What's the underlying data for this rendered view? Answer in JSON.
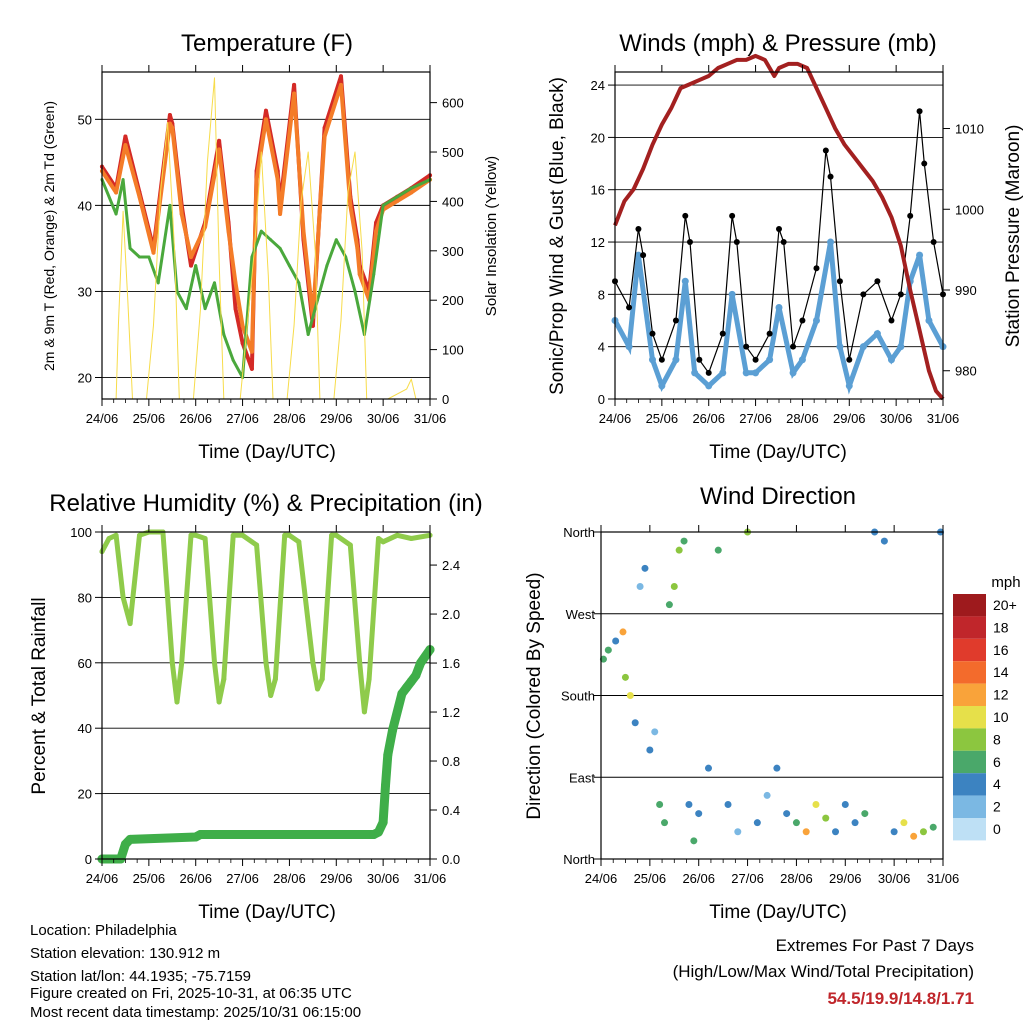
{
  "info": {
    "location": "Location: Philadelphia",
    "elevation": "Station elevation: 130.912 m",
    "latlon": "Station lat/lon: 44.1935; -75.7159",
    "created": "Figure created on Fri, 2025-10-31, at 06:35 UTC",
    "recent": "Most recent data timestamp: 2025/10/31 06:15:00"
  },
  "extremes": {
    "title": "Extremes For Past 7 Days",
    "subtitle": "(High/Low/Max Wind/Total Precipitation)",
    "values": "54.5/19.9/14.8/1.71"
  },
  "colors": {
    "temp_red": "#d42a26",
    "temp_orange": "#f47c28",
    "dewpoint_green": "#4aa83c",
    "solar_yellow": "#f7dc4a",
    "wind_blue": "#5b9fd4",
    "gust_black": "#000000",
    "pressure_maroon": "#a32020",
    "rh_green": "#8fcb4b",
    "precip_green": "#3fae49"
  },
  "chart_data": [
    {
      "type": "line",
      "title": "Temperature (F)",
      "xlabel": "Time (Day/UTC)",
      "ylabel": "2m & 9m T (Red, Orange) & 2m Td (Green)",
      "ylabel_right": "Solar Insolation (Yellow)",
      "x_ticks": [
        "24/06",
        "25/06",
        "26/06",
        "27/06",
        "28/06",
        "29/06",
        "30/06",
        "31/06"
      ],
      "xlim": [
        0,
        7
      ],
      "ylim": [
        17.5,
        55.5
      ],
      "y_ticks": [
        20,
        30,
        40,
        50
      ],
      "ylim_right": [
        0,
        662
      ],
      "y_ticks_right": [
        0,
        100,
        200,
        300,
        400,
        500,
        600
      ],
      "series": [
        {
          "name": "2m T",
          "color": "#d42a26",
          "x": [
            0,
            0.3,
            0.5,
            0.8,
            1.1,
            1.45,
            1.5,
            1.7,
            1.9,
            2.2,
            2.5,
            2.7,
            2.85,
            3.0,
            3.2,
            3.3,
            3.5,
            3.75,
            3.8,
            4.1,
            4.3,
            4.5,
            4.75,
            5.1,
            5.3,
            5.45,
            5.5,
            5.7,
            5.85,
            6.0,
            6.3,
            6.6,
            7.0
          ],
          "y": [
            44.5,
            42,
            48,
            41.5,
            35,
            50.5,
            49.5,
            40,
            33,
            38,
            47.5,
            38,
            28,
            24,
            21,
            44,
            51,
            44,
            40,
            54,
            36,
            26,
            49,
            55,
            41,
            36,
            33,
            30,
            38,
            40,
            41,
            42,
            43.5
          ]
        },
        {
          "name": "9m T",
          "color": "#f47c28",
          "x": [
            0,
            0.3,
            0.5,
            0.8,
            1.1,
            1.45,
            1.5,
            1.7,
            1.9,
            2.2,
            2.5,
            2.7,
            2.85,
            3.0,
            3.2,
            3.3,
            3.5,
            3.75,
            3.8,
            4.1,
            4.3,
            4.5,
            4.75,
            5.1,
            5.3,
            5.45,
            5.5,
            5.7,
            5.85,
            6.0,
            6.3,
            6.6,
            7.0
          ],
          "y": [
            44,
            41.5,
            47,
            41,
            34.5,
            49.5,
            49,
            39,
            34,
            37.5,
            46.5,
            37,
            31,
            26,
            23,
            43,
            50,
            43,
            39,
            53,
            37,
            27,
            48,
            54,
            40,
            35,
            32,
            29,
            37,
            39.5,
            40.5,
            41.5,
            43
          ]
        },
        {
          "name": "2m Td",
          "color": "#4aa83c",
          "x": [
            0,
            0.3,
            0.45,
            0.6,
            0.8,
            1.0,
            1.2,
            1.45,
            1.6,
            1.8,
            2.0,
            2.2,
            2.4,
            2.6,
            2.8,
            3.0,
            3.2,
            3.4,
            3.6,
            3.8,
            4.0,
            4.2,
            4.4,
            4.6,
            4.8,
            5.0,
            5.2,
            5.4,
            5.6,
            5.8,
            6.0,
            6.3,
            6.6,
            7.0
          ],
          "y": [
            43,
            39,
            43,
            35,
            34,
            34,
            31,
            40,
            30,
            28,
            33,
            28,
            31,
            25,
            22,
            20,
            34,
            37,
            36,
            35,
            33,
            31,
            25,
            29,
            33,
            36,
            34,
            30,
            25,
            32,
            40,
            41,
            42,
            43
          ]
        },
        {
          "name": "Solar Insolation",
          "color": "#f7dc4a",
          "axis": "right",
          "x": [
            0,
            0.3,
            0.35,
            0.45,
            0.55,
            0.65,
            0.95,
            1.1,
            1.25,
            1.4,
            1.55,
            1.65,
            1.95,
            2.1,
            2.25,
            2.4,
            2.5,
            2.6,
            2.95,
            3.1,
            3.25,
            3.4,
            3.55,
            3.65,
            3.95,
            4.1,
            4.25,
            4.4,
            4.55,
            4.65,
            4.95,
            5.1,
            5.25,
            5.4,
            5.55,
            5.65,
            5.95,
            6.1,
            6.5,
            6.6,
            6.7,
            7.0
          ],
          "y": [
            0,
            0,
            150,
            380,
            200,
            0,
            0,
            150,
            420,
            560,
            300,
            0,
            0,
            180,
            480,
            650,
            280,
            0,
            0,
            150,
            300,
            500,
            250,
            0,
            0,
            150,
            400,
            500,
            300,
            0,
            0,
            160,
            420,
            500,
            300,
            0,
            0,
            0,
            20,
            40,
            0,
            0
          ]
        }
      ]
    },
    {
      "type": "scatter",
      "title": "Winds (mph) & Pressure (mb)",
      "xlabel": "Time (Day/UTC)",
      "ylabel": "Sonic/Prop Wind & Gust (Blue, Black)",
      "ylabel_right": "Station Pressure (Maroon)",
      "x_ticks": [
        "24/06",
        "25/06",
        "26/06",
        "27/06",
        "28/06",
        "29/06",
        "30/06",
        "31/06"
      ],
      "xlim": [
        0,
        7
      ],
      "ylim": [
        0,
        25
      ],
      "y_ticks": [
        0,
        4,
        8,
        12,
        16,
        20,
        24
      ],
      "ylim_right": [
        976.5,
        1017
      ],
      "y_ticks_right": [
        980,
        990,
        1000,
        1010
      ],
      "series": [
        {
          "name": "Wind",
          "color": "#5b9fd4",
          "x": [
            0,
            0.3,
            0.5,
            0.8,
            1.0,
            1.3,
            1.5,
            1.7,
            2.0,
            2.3,
            2.5,
            2.8,
            3.0,
            3.3,
            3.5,
            3.8,
            4.0,
            4.3,
            4.6,
            4.8,
            5.0,
            5.3,
            5.6,
            5.9,
            6.1,
            6.3,
            6.5,
            6.7,
            7.0
          ],
          "y": [
            6,
            4,
            11,
            3,
            1,
            3,
            9,
            2,
            1,
            2,
            8,
            2,
            2,
            3,
            7,
            2,
            3,
            6,
            12,
            4,
            1,
            4,
            5,
            3,
            4,
            9,
            11,
            6,
            4
          ]
        },
        {
          "name": "Gust",
          "color": "#000000",
          "x": [
            0,
            0.3,
            0.5,
            0.6,
            0.8,
            1.0,
            1.3,
            1.5,
            1.6,
            1.8,
            2.0,
            2.3,
            2.5,
            2.6,
            2.8,
            3.0,
            3.3,
            3.5,
            3.6,
            3.8,
            4.0,
            4.3,
            4.5,
            4.6,
            4.8,
            5.0,
            5.3,
            5.6,
            5.9,
            6.1,
            6.3,
            6.5,
            6.6,
            6.8,
            7.0
          ],
          "y": [
            9,
            7,
            13,
            11,
            5,
            3,
            6,
            14,
            12,
            3,
            2,
            5,
            14,
            12,
            4,
            3,
            5,
            13,
            12,
            4,
            6,
            10,
            19,
            17,
            9,
            3,
            8,
            9,
            6,
            8,
            14,
            22,
            18,
            12,
            8
          ]
        },
        {
          "name": "Pressure",
          "color": "#a32020",
          "axis": "right",
          "x": [
            0,
            0.2,
            0.4,
            0.6,
            0.8,
            1.0,
            1.2,
            1.4,
            1.6,
            1.8,
            2.0,
            2.2,
            2.4,
            2.6,
            2.8,
            3.0,
            3.2,
            3.4,
            3.5,
            3.7,
            3.9,
            4.1,
            4.3,
            4.5,
            4.7,
            4.9,
            5.1,
            5.3,
            5.5,
            5.7,
            5.9,
            6.1,
            6.3,
            6.5,
            6.7,
            6.85,
            7.0
          ],
          "y": [
            998,
            1001,
            1002.5,
            1005,
            1008,
            1010.5,
            1012.5,
            1015,
            1015.5,
            1016,
            1016.5,
            1017.5,
            1018,
            1018.5,
            1018.5,
            1019,
            1018.5,
            1016.5,
            1017.5,
            1018,
            1018,
            1017.5,
            1015,
            1012.5,
            1010,
            1008,
            1006.5,
            1005,
            1003.5,
            1001.5,
            999,
            995.5,
            990,
            985,
            980,
            977.5,
            976.5
          ]
        }
      ]
    },
    {
      "type": "line",
      "title": "Relative Humidity (%) & Precipitation (in)",
      "xlabel": "Time (Day/UTC)",
      "ylabel": "Percent & Total Rainfall",
      "x_ticks": [
        "24/06",
        "25/06",
        "26/06",
        "27/06",
        "28/06",
        "29/06",
        "30/06",
        "31/06"
      ],
      "xlim": [
        0,
        7
      ],
      "ylim": [
        0,
        100
      ],
      "y_ticks": [
        0,
        20,
        40,
        60,
        80,
        100
      ],
      "ylim_right": [
        0,
        2.67
      ],
      "y_ticks_right": [
        0.0,
        0.4,
        0.8,
        1.2,
        1.6,
        2.0,
        2.4
      ],
      "series": [
        {
          "name": "Relative Humidity",
          "color": "#8fcb4b",
          "x": [
            0,
            0.15,
            0.3,
            0.45,
            0.6,
            0.8,
            1.0,
            1.3,
            1.5,
            1.6,
            1.7,
            1.9,
            2.0,
            2.2,
            2.4,
            2.5,
            2.6,
            2.8,
            3.0,
            3.3,
            3.5,
            3.6,
            3.7,
            3.9,
            4.0,
            4.2,
            4.5,
            4.6,
            4.7,
            4.9,
            5.0,
            5.3,
            5.5,
            5.6,
            5.7,
            5.9,
            6.0,
            6.3,
            6.6,
            7.0
          ],
          "y": [
            94,
            98,
            99,
            80,
            72,
            99,
            100,
            100,
            60,
            48,
            60,
            99,
            99,
            98,
            60,
            48,
            55,
            99,
            99,
            96,
            60,
            50,
            55,
            99,
            99,
            97,
            60,
            52,
            55,
            99,
            99,
            96,
            60,
            45,
            55,
            98,
            97,
            99,
            98,
            99
          ]
        },
        {
          "name": "Total Precipitation",
          "color": "#3fae49",
          "axis": "right",
          "x": [
            0,
            0.4,
            0.5,
            0.6,
            2.0,
            2.1,
            5.8,
            5.9,
            6.0,
            6.05,
            6.1,
            6.2,
            6.4,
            6.5,
            6.6,
            6.7,
            6.8,
            7.0
          ],
          "y": [
            0,
            0,
            0.12,
            0.16,
            0.18,
            0.2,
            0.2,
            0.22,
            0.3,
            0.6,
            0.85,
            1.05,
            1.35,
            1.4,
            1.45,
            1.5,
            1.6,
            1.71
          ]
        }
      ]
    },
    {
      "type": "scatter",
      "title": "Wind Direction",
      "xlabel": "Time (Day/UTC)",
      "ylabel": "Direction (Colored By Speed)",
      "x_ticks": [
        "24/06",
        "25/06",
        "26/06",
        "27/06",
        "28/06",
        "29/06",
        "30/06",
        "31/06"
      ],
      "xlim": [
        0,
        7
      ],
      "ylim": [
        0,
        360
      ],
      "y_tick_labels": [
        "North",
        "East",
        "South",
        "West",
        "North"
      ],
      "y_tick_values": [
        0,
        90,
        180,
        270,
        360
      ],
      "colorbar_title": "mph",
      "colorbar_labels": [
        "20+",
        "18",
        "16",
        "14",
        "12",
        "10",
        "8",
        "6",
        "4",
        "2",
        "0"
      ],
      "colorbar_colors": [
        "#9e1a1d",
        "#c0262b",
        "#e03b2c",
        "#f36b2c",
        "#f9a33a",
        "#e6e04a",
        "#8cc63f",
        "#4aa86a",
        "#3c83c1",
        "#7bb8e3",
        "#bee0f5"
      ],
      "series": [
        {
          "name": "Direction",
          "x": [
            0.05,
            0.15,
            0.3,
            0.45,
            0.5,
            0.6,
            0.7,
            0.8,
            0.9,
            1.0,
            1.1,
            1.2,
            1.3,
            1.4,
            1.5,
            1.6,
            1.7,
            1.8,
            1.9,
            2.0,
            2.2,
            2.4,
            2.6,
            2.8,
            3.0,
            3.2,
            3.4,
            3.6,
            3.8,
            4.0,
            4.2,
            4.4,
            4.6,
            4.8,
            5.0,
            5.2,
            5.4,
            5.6,
            5.8,
            6.0,
            6.2,
            6.4,
            6.6,
            6.8,
            6.95
          ],
          "y": [
            220,
            230,
            240,
            250,
            200,
            180,
            150,
            300,
            320,
            120,
            140,
            60,
            40,
            280,
            300,
            340,
            350,
            60,
            20,
            50,
            100,
            340,
            60,
            30,
            360,
            40,
            70,
            100,
            50,
            40,
            30,
            60,
            45,
            30,
            60,
            40,
            50,
            360,
            350,
            30,
            40,
            25,
            30,
            35,
            360
          ],
          "speed": [
            6,
            5,
            4,
            12,
            8,
            10,
            3,
            2,
            4,
            3,
            2,
            5,
            6,
            6,
            7,
            8,
            6,
            4,
            5,
            3,
            4,
            6,
            3,
            2,
            8,
            3,
            2,
            3,
            4,
            5,
            12,
            10,
            8,
            4,
            3,
            4,
            5,
            3,
            4,
            3,
            10,
            12,
            8,
            5,
            3
          ]
        }
      ]
    }
  ]
}
